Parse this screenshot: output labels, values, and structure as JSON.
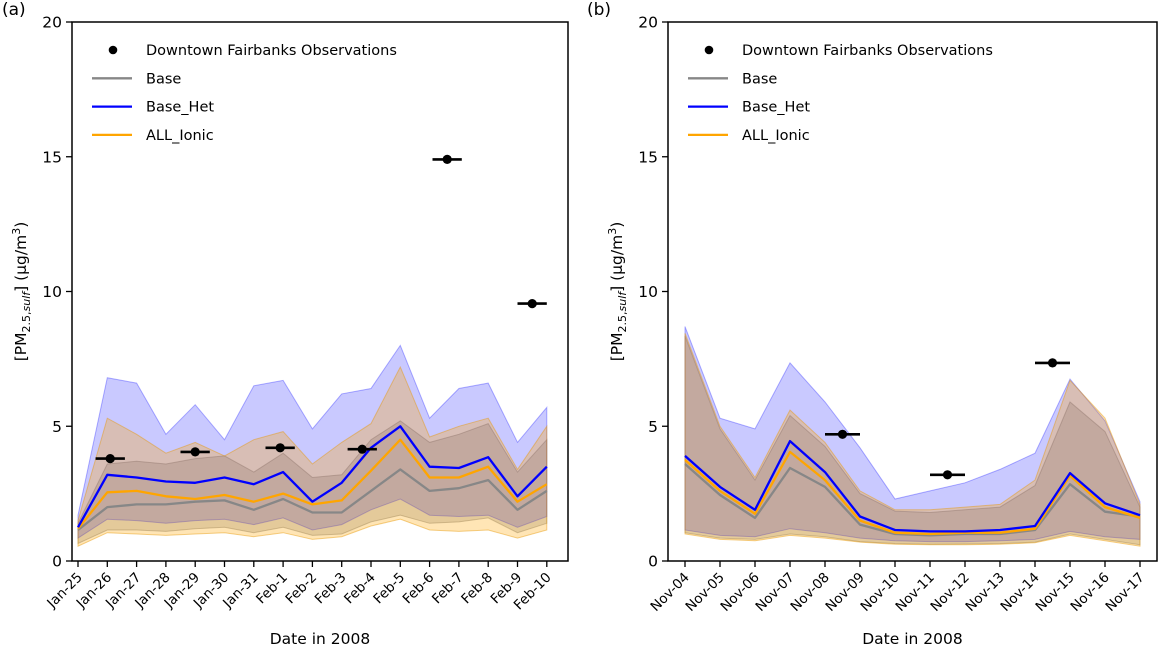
{
  "figure_title": "",
  "chart_data": [
    {
      "type": "line",
      "panel_label": "(a)",
      "xlabel": "Date in 2008",
      "ylabel_plain": "[PM2.5,sulf] (µg/m3)",
      "ylabel_parts": {
        "prefix": "[PM",
        "sub": "2.5,",
        "sub_italic": "sulf",
        "mid": "] (µg/m",
        "sup": "3",
        "suffix": ")"
      },
      "ylim": [
        0,
        20
      ],
      "yticks": [
        0,
        5,
        10,
        15,
        20
      ],
      "grid": false,
      "legend_position": "upper-left",
      "categories": [
        "Jan-25",
        "Jan-26",
        "Jan-27",
        "Jan-28",
        "Jan-29",
        "Jan-30",
        "Jan-31",
        "Feb-1",
        "Feb-2",
        "Feb-3",
        "Feb-4",
        "Feb-5",
        "Feb-6",
        "Feb-7",
        "Feb-8",
        "Feb-9",
        "Feb-10"
      ],
      "series": [
        {
          "name": "Base",
          "color": "#878787",
          "values": [
            1.15,
            2.0,
            2.1,
            2.1,
            2.2,
            2.25,
            1.9,
            2.3,
            1.8,
            1.8,
            2.6,
            3.4,
            2.6,
            2.7,
            3.0,
            1.9,
            2.6
          ]
        },
        {
          "name": "ALL_Ionic",
          "color": "#ffa500",
          "values": [
            1.2,
            2.55,
            2.6,
            2.4,
            2.3,
            2.45,
            2.2,
            2.5,
            2.1,
            2.25,
            3.35,
            4.5,
            3.1,
            3.1,
            3.5,
            2.2,
            2.85
          ]
        },
        {
          "name": "Base_Het",
          "color": "#0000ff",
          "values": [
            1.25,
            3.2,
            3.1,
            2.95,
            2.9,
            3.1,
            2.85,
            3.3,
            2.2,
            2.9,
            4.2,
            5.0,
            3.5,
            3.45,
            3.85,
            2.4,
            3.5
          ]
        }
      ],
      "bands": [
        {
          "name": "Base-range",
          "fill": "rgba(128,128,128,0.30)",
          "stroke": "rgba(110,110,110,0.40)",
          "upper": [
            1.4,
            3.6,
            3.7,
            3.6,
            3.8,
            3.9,
            3.3,
            4.0,
            3.1,
            3.2,
            4.5,
            5.2,
            4.4,
            4.7,
            5.1,
            3.3,
            4.5
          ],
          "lower": [
            0.65,
            1.15,
            1.15,
            1.1,
            1.2,
            1.25,
            1.05,
            1.25,
            0.95,
            1.0,
            1.45,
            1.7,
            1.4,
            1.45,
            1.6,
            1.05,
            1.4
          ]
        },
        {
          "name": "Base_Het-range",
          "fill": "rgba(0,0,255,0.21)",
          "stroke": "rgba(0,0,255,0.30)",
          "upper": [
            1.7,
            6.8,
            6.6,
            4.7,
            5.8,
            4.5,
            6.5,
            6.7,
            4.9,
            6.2,
            6.4,
            8.0,
            5.3,
            6.4,
            6.6,
            4.4,
            5.7
          ],
          "lower": [
            0.85,
            1.55,
            1.5,
            1.4,
            1.5,
            1.55,
            1.35,
            1.6,
            1.15,
            1.35,
            1.9,
            2.3,
            1.7,
            1.65,
            1.7,
            1.25,
            1.65
          ]
        },
        {
          "name": "ALL_Ionic-range",
          "fill": "rgba(255,165,0,0.29)",
          "stroke": "rgba(230,150,0,0.45)",
          "upper": [
            1.5,
            5.3,
            4.7,
            4.0,
            4.4,
            3.9,
            4.5,
            4.8,
            3.6,
            4.4,
            5.1,
            7.2,
            4.6,
            5.0,
            5.3,
            3.4,
            5.0
          ],
          "lower": [
            0.55,
            1.05,
            1.0,
            0.95,
            1.0,
            1.05,
            0.9,
            1.05,
            0.8,
            0.9,
            1.3,
            1.55,
            1.15,
            1.1,
            1.15,
            0.85,
            1.15
          ]
        }
      ],
      "observations": {
        "name": "Downtown Fairbanks Observations",
        "color": "#000000",
        "x_days": [
          1.1,
          4.0,
          6.9,
          9.7,
          12.6,
          15.5
        ],
        "values": [
          3.8,
          4.05,
          4.2,
          4.15,
          14.9,
          9.55
        ],
        "xerr_days": 0.5
      },
      "legend": [
        {
          "label": "Downtown Fairbanks Observations",
          "swatch": "marker",
          "color": "#000000"
        },
        {
          "label": "Base",
          "swatch": "line",
          "color": "#878787"
        },
        {
          "label": "Base_Het",
          "swatch": "line",
          "color": "#0000ff"
        },
        {
          "label": "ALL_Ionic",
          "swatch": "line",
          "color": "#ffa500"
        }
      ]
    },
    {
      "type": "line",
      "panel_label": "(b)",
      "xlabel": "Date in 2008",
      "ylabel_plain": "[PM2.5,sulf] (µg/m3)",
      "ylabel_parts": {
        "prefix": "[PM",
        "sub": "2.5,",
        "sub_italic": "sulf",
        "mid": "] (µg/m",
        "sup": "3",
        "suffix": ")"
      },
      "ylim": [
        0,
        20
      ],
      "yticks": [
        0,
        5,
        10,
        15,
        20
      ],
      "grid": false,
      "legend_position": "upper-left",
      "categories": [
        "Nov-04",
        "Nov-05",
        "Nov-06",
        "Nov-07",
        "Nov-08",
        "Nov-09",
        "Nov-10",
        "Nov-11",
        "Nov-12",
        "Nov-13",
        "Nov-14",
        "Nov-15",
        "Nov-16",
        "Nov-17"
      ],
      "series": [
        {
          "name": "Base",
          "color": "#878787",
          "values": [
            3.6,
            2.45,
            1.6,
            3.45,
            2.75,
            1.35,
            1.0,
            0.95,
            1.0,
            1.0,
            1.15,
            2.85,
            1.83,
            1.65
          ]
        },
        {
          "name": "ALL_Ionic",
          "color": "#ffa500",
          "values": [
            3.75,
            2.6,
            1.75,
            4.05,
            3.0,
            1.5,
            1.05,
            1.0,
            1.05,
            1.05,
            1.2,
            3.17,
            2.0,
            1.6
          ]
        },
        {
          "name": "Base_Het",
          "color": "#0000ff",
          "values": [
            3.9,
            2.75,
            1.9,
            4.45,
            3.3,
            1.65,
            1.15,
            1.1,
            1.1,
            1.15,
            1.3,
            3.26,
            2.14,
            1.7
          ]
        }
      ],
      "bands": [
        {
          "name": "Base-range",
          "fill": "rgba(128,128,128,0.30)",
          "stroke": "rgba(110,110,110,0.40)",
          "upper": [
            8.35,
            4.9,
            3.0,
            5.4,
            4.25,
            2.5,
            1.85,
            1.8,
            1.9,
            2.0,
            2.8,
            5.9,
            4.8,
            2.0
          ],
          "lower": [
            1.05,
            0.85,
            0.8,
            1.0,
            0.9,
            0.72,
            0.65,
            0.62,
            0.63,
            0.65,
            0.7,
            1.0,
            0.8,
            0.6
          ]
        },
        {
          "name": "Base_Het-range",
          "fill": "rgba(0,0,255,0.21)",
          "stroke": "rgba(0,0,255,0.30)",
          "upper": [
            8.7,
            5.3,
            4.9,
            7.35,
            5.9,
            4.2,
            2.3,
            2.6,
            2.9,
            3.4,
            4.0,
            6.75,
            5.2,
            2.2
          ],
          "lower": [
            1.15,
            0.95,
            0.9,
            1.2,
            1.05,
            0.85,
            0.75,
            0.72,
            0.72,
            0.75,
            0.8,
            1.1,
            0.9,
            0.8
          ]
        },
        {
          "name": "ALL_Ionic-range",
          "fill": "rgba(255,165,0,0.29)",
          "stroke": "rgba(230,150,0,0.45)",
          "upper": [
            8.45,
            5.0,
            3.1,
            5.6,
            4.4,
            2.6,
            1.9,
            1.9,
            2.0,
            2.1,
            3.0,
            6.7,
            5.3,
            2.1
          ],
          "lower": [
            1.0,
            0.8,
            0.75,
            0.95,
            0.85,
            0.7,
            0.62,
            0.6,
            0.6,
            0.62,
            0.68,
            0.95,
            0.75,
            0.55
          ]
        }
      ],
      "observations": {
        "name": "Downtown Fairbanks Observations",
        "color": "#000000",
        "x_days": [
          4.5,
          7.5,
          10.5
        ],
        "values": [
          4.7,
          3.2,
          7.35
        ],
        "xerr_days": 0.5
      },
      "legend": [
        {
          "label": "Downtown Fairbanks Observations",
          "swatch": "marker",
          "color": "#000000"
        },
        {
          "label": "Base",
          "swatch": "line",
          "color": "#878787"
        },
        {
          "label": "Base_Het",
          "swatch": "line",
          "color": "#0000ff"
        },
        {
          "label": "ALL_Ionic",
          "swatch": "line",
          "color": "#ffa500"
        }
      ]
    }
  ]
}
